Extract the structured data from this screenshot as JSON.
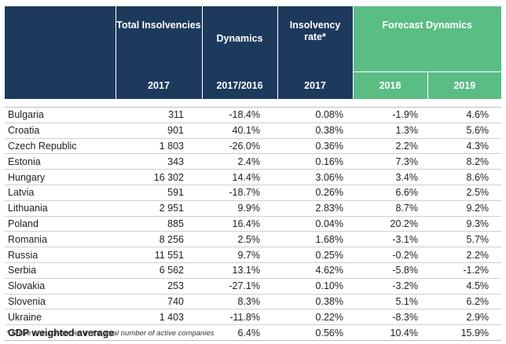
{
  "header": {
    "total_insolvencies": "Total Insolvencies",
    "dynamics": "Dynamics",
    "insolvency_rate": "Insolvency rate*",
    "forecast_dynamics": "Forecast Dynamics",
    "y2017a": "2017",
    "y2017_2016": "2017/2016",
    "y2017b": "2017",
    "y2018": "2018",
    "y2019": "2019"
  },
  "rows": [
    {
      "country": "Bulgaria",
      "total": "311",
      "dyn": "-18.4%",
      "rate": "0.08%",
      "f2018": "-1.9%",
      "f2019": "4.6%"
    },
    {
      "country": "Croatia",
      "total": "901",
      "dyn": "40.1%",
      "rate": "0.38%",
      "f2018": "1.3%",
      "f2019": "5.6%"
    },
    {
      "country": "Czech Republic",
      "total": "1 803",
      "dyn": "-26.0%",
      "rate": "0.36%",
      "f2018": "2.2%",
      "f2019": "4.3%"
    },
    {
      "country": "Estonia",
      "total": "343",
      "dyn": "2.4%",
      "rate": "0.16%",
      "f2018": "7.3%",
      "f2019": "8.2%"
    },
    {
      "country": "Hungary",
      "total": "16 302",
      "dyn": "14.4%",
      "rate": "3.06%",
      "f2018": "3.4%",
      "f2019": "8.6%"
    },
    {
      "country": "Latvia",
      "total": "591",
      "dyn": "-18.7%",
      "rate": "0.26%",
      "f2018": "6.6%",
      "f2019": "2.5%"
    },
    {
      "country": "Lithuania",
      "total": "2 951",
      "dyn": "9.9%",
      "rate": "2.83%",
      "f2018": "8.7%",
      "f2019": "9.2%"
    },
    {
      "country": "Poland",
      "total": "885",
      "dyn": "16.4%",
      "rate": "0.04%",
      "f2018": "20.2%",
      "f2019": "9.3%"
    },
    {
      "country": "Romania",
      "total": "8 256",
      "dyn": "2.5%",
      "rate": "1.68%",
      "f2018": "-3.1%",
      "f2019": "5.7%"
    },
    {
      "country": "Russia",
      "total": "11 551",
      "dyn": "9.7%",
      "rate": "0.25%",
      "f2018": "-0.2%",
      "f2019": "2.2%"
    },
    {
      "country": "Serbia",
      "total": "6 562",
      "dyn": "13.1%",
      "rate": "4.62%",
      "f2018": "-5.8%",
      "f2019": "-1.2%"
    },
    {
      "country": "Slovakia",
      "total": "253",
      "dyn": "-27.1%",
      "rate": "0.10%",
      "f2018": "-3.2%",
      "f2019": "4.5%"
    },
    {
      "country": "Slovenia",
      "total": "740",
      "dyn": "8.3%",
      "rate": "0.38%",
      "f2018": "5.1%",
      "f2019": "6.2%"
    },
    {
      "country": "Ukraine",
      "total": "1 403",
      "dyn": "-11.8%",
      "rate": "0.22%",
      "f2018": "-8.3%",
      "f2019": "2.9%"
    }
  ],
  "total_row": {
    "label": "GDP weighted average",
    "dyn": "6.4%",
    "rate": "0.56%",
    "f2018": "10.4%",
    "f2019": "15.9%"
  },
  "footnote": "* Share of insolvencies in the total number of active companies",
  "colors": {
    "header_navy": "#1d3a5c",
    "header_green": "#5abd84"
  }
}
